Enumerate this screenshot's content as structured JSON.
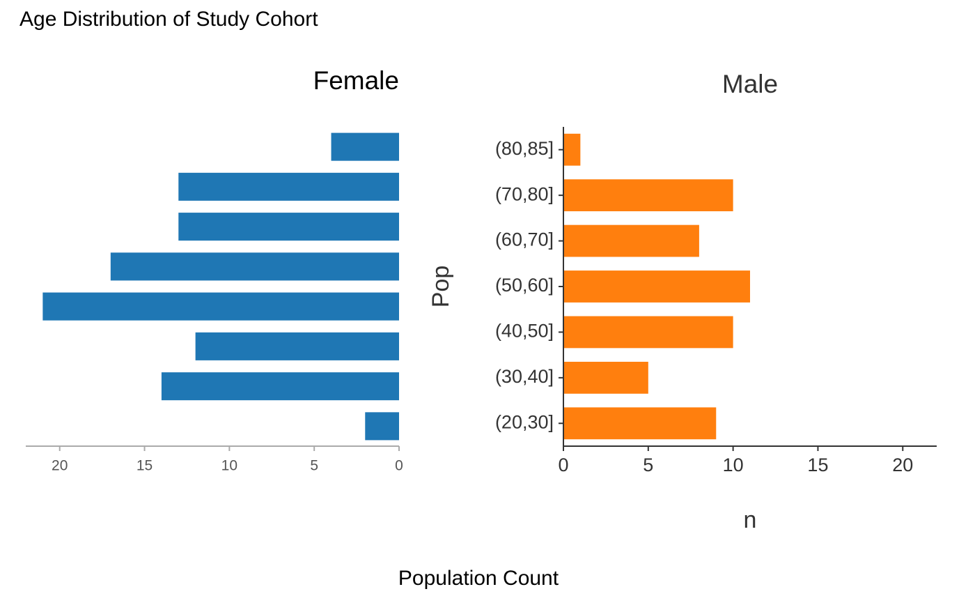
{
  "title": "Age Distribution of Study Cohort",
  "footer_label": "Population Count",
  "chart_data": [
    {
      "type": "bar",
      "orientation": "horizontal",
      "title": "Female",
      "x_reversed": true,
      "categories": [
        null,
        null,
        null,
        null,
        null,
        null,
        null,
        null
      ],
      "values": [
        2,
        14,
        12,
        21,
        17,
        13,
        13,
        4
      ],
      "color": "#1f77b4",
      "xlim": [
        0,
        22
      ],
      "xticks": [
        0,
        5,
        10,
        15,
        20
      ]
    },
    {
      "type": "bar",
      "orientation": "horizontal",
      "title": "Male",
      "x_reversed": false,
      "categories": [
        "(20,30]",
        "(30,40]",
        "(40,50]",
        "(50,60]",
        "(60,70]",
        "(70,80]",
        "(80,85]"
      ],
      "values": [
        9,
        5,
        10,
        11,
        8,
        10,
        1
      ],
      "color": "#ff7f0e",
      "xlim": [
        0,
        22
      ],
      "xticks": [
        0,
        5,
        10,
        15,
        20
      ],
      "xlabel": "n",
      "ylabel": "Pop"
    }
  ]
}
